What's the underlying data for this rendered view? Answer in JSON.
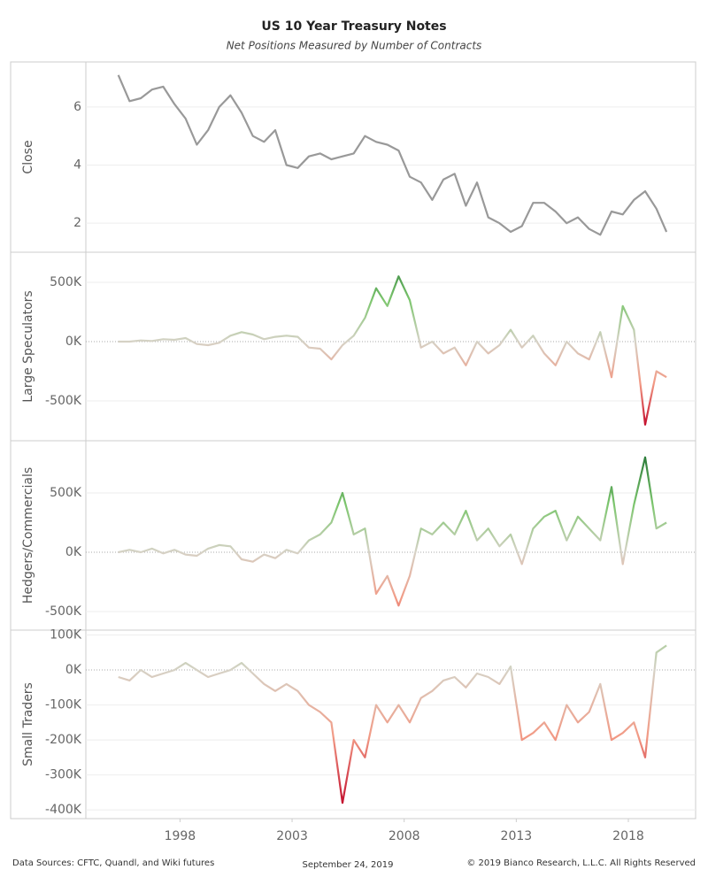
{
  "title": "US 10 Year Treasury Notes",
  "subtitle": "Net Positions Measured by Number of Contracts",
  "footer": {
    "source": "Data Sources: CFTC, Quandl, and Wiki futures",
    "date": "September 24, 2019",
    "copyright": "© 2019 Bianco Research, L.L.C. All Rights Reserved"
  },
  "chart_data": [
    {
      "type": "line",
      "ylabel": "Close",
      "color": "#999999",
      "grid": true,
      "xlim": [
        1993.8,
        2021
      ],
      "ylim": [
        1.0,
        7.55
      ],
      "yticks": [
        2,
        4,
        6
      ],
      "x": [
        1995.25,
        1995.75,
        1996.25,
        1996.75,
        1997.25,
        1997.75,
        1998.25,
        1998.75,
        1999.25,
        1999.75,
        2000.25,
        2000.75,
        2001.25,
        2001.75,
        2002.25,
        2002.75,
        2003.25,
        2003.75,
        2004.25,
        2004.75,
        2005.25,
        2005.75,
        2006.25,
        2006.75,
        2007.25,
        2007.75,
        2008.25,
        2008.75,
        2009.25,
        2009.75,
        2010.25,
        2010.75,
        2011.25,
        2011.75,
        2012.25,
        2012.75,
        2013.25,
        2013.75,
        2014.25,
        2014.75,
        2015.25,
        2015.75,
        2016.25,
        2016.75,
        2017.25,
        2017.75,
        2018.25,
        2018.75,
        2019.25,
        2019.7
      ],
      "values": [
        7.1,
        6.2,
        6.3,
        6.6,
        6.7,
        6.1,
        5.6,
        4.7,
        5.2,
        6.0,
        6.4,
        5.8,
        5.0,
        4.8,
        5.2,
        4.0,
        3.9,
        4.3,
        4.4,
        4.2,
        4.3,
        4.4,
        5.0,
        4.8,
        4.7,
        4.5,
        3.6,
        3.4,
        2.8,
        3.5,
        3.7,
        2.6,
        3.4,
        2.2,
        2.0,
        1.7,
        1.9,
        2.7,
        2.7,
        2.4,
        2.0,
        2.2,
        1.8,
        1.6,
        2.4,
        2.3,
        2.8,
        3.1,
        2.5,
        1.7
      ]
    },
    {
      "type": "line",
      "ylabel": "Large Speculators",
      "colorscale": [
        "#c4102e",
        "#f29a85",
        "#d6d2c6",
        "#7dc66e",
        "#2d7d3a"
      ],
      "grid": true,
      "xlim": [
        1993.8,
        2021
      ],
      "ylim": [
        -836000,
        754000
      ],
      "yticks": [
        {
          "value": 500000,
          "label": "500K"
        },
        {
          "value": 0,
          "label": "0K"
        },
        {
          "value": -500000,
          "label": "-500K"
        }
      ],
      "x": [
        1995.25,
        1995.75,
        1996.25,
        1996.75,
        1997.25,
        1997.75,
        1998.25,
        1998.75,
        1999.25,
        1999.75,
        2000.25,
        2000.75,
        2001.25,
        2001.75,
        2002.25,
        2002.75,
        2003.25,
        2003.75,
        2004.25,
        2004.75,
        2005.25,
        2005.75,
        2006.25,
        2006.75,
        2007.25,
        2007.75,
        2008.25,
        2008.75,
        2009.25,
        2009.75,
        2010.25,
        2010.75,
        2011.25,
        2011.75,
        2012.25,
        2012.75,
        2013.25,
        2013.75,
        2014.25,
        2014.75,
        2015.25,
        2015.75,
        2016.25,
        2016.75,
        2017.25,
        2017.75,
        2018.25,
        2018.75,
        2019.25,
        2019.7
      ],
      "values": [
        0,
        0,
        10000,
        5000,
        20000,
        15000,
        30000,
        -20000,
        -30000,
        -10000,
        50000,
        80000,
        60000,
        20000,
        40000,
        50000,
        40000,
        -50000,
        -60000,
        -150000,
        -30000,
        50000,
        200000,
        450000,
        300000,
        550000,
        350000,
        -50000,
        0,
        -100000,
        -50000,
        -200000,
        0,
        -100000,
        -30000,
        100000,
        -50000,
        50000,
        -100000,
        -200000,
        0,
        -100000,
        -150000,
        80000,
        -300000,
        300000,
        100000,
        -700000,
        -250000,
        -300000
      ]
    },
    {
      "type": "line",
      "ylabel": "Hedgers/Commercials",
      "colorscale": [
        "#c4102e",
        "#f29a85",
        "#d6d2c6",
        "#7dc66e",
        "#2d7d3a"
      ],
      "grid": true,
      "xlim": [
        1993.8,
        2021
      ],
      "ylim": [
        -657000,
        940000
      ],
      "yticks": [
        {
          "value": 500000,
          "label": "500K"
        },
        {
          "value": 0,
          "label": "0K"
        },
        {
          "value": -500000,
          "label": "-500K"
        }
      ],
      "x": [
        1995.25,
        1995.75,
        1996.25,
        1996.75,
        1997.25,
        1997.75,
        1998.25,
        1998.75,
        1999.25,
        1999.75,
        2000.25,
        2000.75,
        2001.25,
        2001.75,
        2002.25,
        2002.75,
        2003.25,
        2003.75,
        2004.25,
        2004.75,
        2005.25,
        2005.75,
        2006.25,
        2006.75,
        2007.25,
        2007.75,
        2008.25,
        2008.75,
        2009.25,
        2009.75,
        2010.25,
        2010.75,
        2011.25,
        2011.75,
        2012.25,
        2012.75,
        2013.25,
        2013.75,
        2014.25,
        2014.75,
        2015.25,
        2015.75,
        2016.25,
        2016.75,
        2017.25,
        2017.75,
        2018.25,
        2018.75,
        2019.25,
        2019.7
      ],
      "values": [
        0,
        20000,
        0,
        30000,
        -10000,
        20000,
        -20000,
        -30000,
        30000,
        60000,
        50000,
        -60000,
        -80000,
        -20000,
        -50000,
        20000,
        -10000,
        100000,
        150000,
        250000,
        500000,
        150000,
        200000,
        -350000,
        -200000,
        -450000,
        -200000,
        200000,
        150000,
        250000,
        150000,
        350000,
        100000,
        200000,
        50000,
        150000,
        -100000,
        200000,
        300000,
        350000,
        100000,
        300000,
        200000,
        100000,
        550000,
        -100000,
        400000,
        800000,
        200000,
        250000
      ]
    },
    {
      "type": "line",
      "ylabel": "Small Traders",
      "colorscale": [
        "#c4102e",
        "#f29a85",
        "#d6d2c6",
        "#7dc66e",
        "#2d7d3a"
      ],
      "grid": true,
      "xlim": [
        1993.8,
        2021
      ],
      "ylim": [
        -425000,
        114000
      ],
      "yticks": [
        {
          "value": 100000,
          "label": "100K"
        },
        {
          "value": 0,
          "label": "0K"
        },
        {
          "value": -100000,
          "label": "-100K"
        },
        {
          "value": -200000,
          "label": "-200K"
        },
        {
          "value": -300000,
          "label": "-300K"
        },
        {
          "value": -400000,
          "label": "-400K"
        }
      ],
      "xticks": [
        1998,
        2003,
        2008,
        2013,
        2018
      ],
      "x": [
        1995.25,
        1995.75,
        1996.25,
        1996.75,
        1997.25,
        1997.75,
        1998.25,
        1998.75,
        1999.25,
        1999.75,
        2000.25,
        2000.75,
        2001.25,
        2001.75,
        2002.25,
        2002.75,
        2003.25,
        2003.75,
        2004.25,
        2004.75,
        2005.25,
        2005.75,
        2006.25,
        2006.75,
        2007.25,
        2007.75,
        2008.25,
        2008.75,
        2009.25,
        2009.75,
        2010.25,
        2010.75,
        2011.25,
        2011.75,
        2012.25,
        2012.75,
        2013.25,
        2013.75,
        2014.25,
        2014.75,
        2015.25,
        2015.75,
        2016.25,
        2016.75,
        2017.25,
        2017.75,
        2018.25,
        2018.75,
        2019.25,
        2019.7
      ],
      "values": [
        -20000,
        -30000,
        0,
        -20000,
        -10000,
        0,
        20000,
        0,
        -20000,
        -10000,
        0,
        20000,
        -10000,
        -40000,
        -60000,
        -40000,
        -60000,
        -100000,
        -120000,
        -150000,
        -380000,
        -200000,
        -250000,
        -100000,
        -150000,
        -100000,
        -150000,
        -80000,
        -60000,
        -30000,
        -20000,
        -50000,
        -10000,
        -20000,
        -40000,
        10000,
        -200000,
        -180000,
        -150000,
        -200000,
        -100000,
        -150000,
        -120000,
        -40000,
        -200000,
        -180000,
        -150000,
        -250000,
        50000,
        70000
      ]
    }
  ]
}
